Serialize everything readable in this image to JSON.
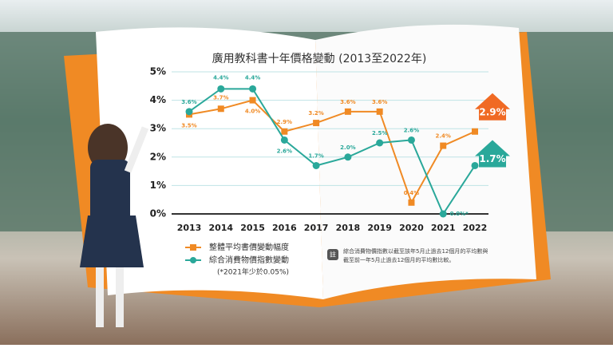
{
  "chart_data": {
    "type": "line",
    "title": "廣用教科書十年價格變動 (2013至2022年)",
    "categories": [
      "2013",
      "2014",
      "2015",
      "2016",
      "2017",
      "2018",
      "2019",
      "2020",
      "2021",
      "2022"
    ],
    "series": [
      {
        "name": "整體平均書價變動幅度",
        "color": "#f08a24",
        "values": [
          3.5,
          3.7,
          4.0,
          2.9,
          3.2,
          3.6,
          3.6,
          0.4,
          2.4,
          2.9
        ],
        "value_labels": [
          "3.5%",
          "3.7%",
          "4.0%",
          "2.9%",
          "3.2%",
          "3.6%",
          "3.6%",
          "0.4%",
          "2.4%",
          "2.9%"
        ]
      },
      {
        "name": "綜合消費物價指數變動",
        "color": "#2aa89a",
        "values": [
          3.6,
          4.4,
          4.4,
          2.6,
          1.7,
          2.0,
          2.5,
          2.6,
          0.0,
          1.7
        ],
        "value_labels": [
          "3.6%",
          "4.4%",
          "4.4%",
          "2.6%",
          "1.7%",
          "2.0%",
          "2.5%",
          "2.6%",
          "0.0%*",
          "1.7%"
        ]
      }
    ],
    "ylim": [
      0,
      5
    ],
    "yticks": [
      {
        "value": 0,
        "label": "0%"
      },
      {
        "value": 1,
        "label": "1%"
      },
      {
        "value": 2,
        "label": "2%"
      },
      {
        "value": 3,
        "label": "3%"
      },
      {
        "value": 4,
        "label": "4%"
      },
      {
        "value": 5,
        "label": "5%"
      }
    ],
    "grid": true,
    "note": "(*2021年少於0.05%)",
    "footnote_mark": "註",
    "footnote": [
      "綜合消費物價指數以截至該年5月止過去12個月的平均數與",
      "截至前一年5月止過去12個月的平均數比較。"
    ]
  }
}
